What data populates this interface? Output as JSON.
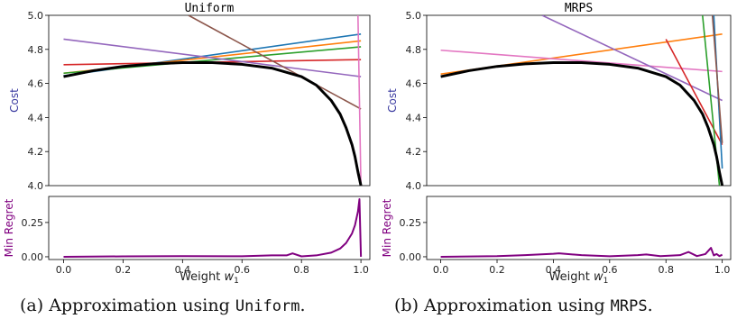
{
  "colors": {
    "frontier": "#000000",
    "regret": "#800080",
    "axis_label": "#3a3aa0",
    "regret_label": "#800080"
  },
  "captions": [
    {
      "prefix": "(a) Approximation using ",
      "code": "Uniform",
      "suffix": "."
    },
    {
      "prefix": "(b) Approximation using ",
      "code": "MRPS",
      "suffix": "."
    }
  ],
  "chart_data": [
    {
      "type": "line",
      "title": "Uniform",
      "xlabel": "Weight w1",
      "ylabel": "Cost",
      "regret_ylabel": "Min Regret",
      "xlim": [
        -0.05,
        1.03
      ],
      "ylim": [
        4.0,
        5.0
      ],
      "regret_ylim": [
        -0.02,
        0.44
      ],
      "xticks": [
        "0.0",
        "0.2",
        "0.4",
        "0.6",
        "0.8",
        "1.0"
      ],
      "yticks": [
        "4.0",
        "4.2",
        "4.4",
        "4.6",
        "4.8",
        "5.0"
      ],
      "regret_yticks": [
        "0.00",
        "0.25"
      ],
      "grid": false,
      "frontier": {
        "color": "#000000",
        "x": [
          0.0,
          0.1,
          0.2,
          0.3,
          0.4,
          0.5,
          0.6,
          0.7,
          0.8,
          0.85,
          0.9,
          0.93,
          0.95,
          0.97,
          0.98,
          0.99,
          1.0
        ],
        "y": [
          4.64,
          4.675,
          4.7,
          4.715,
          4.722,
          4.722,
          4.712,
          4.69,
          4.64,
          4.59,
          4.5,
          4.42,
          4.34,
          4.24,
          4.17,
          4.08,
          4.0
        ]
      },
      "lines": [
        {
          "color": "#1f77b4",
          "x": [
            0.0,
            1.0
          ],
          "y": [
            4.645,
            4.89
          ]
        },
        {
          "color": "#ff7f0e",
          "x": [
            0.0,
            1.0
          ],
          "y": [
            4.66,
            4.85
          ]
        },
        {
          "color": "#2ca02c",
          "x": [
            0.0,
            1.0
          ],
          "y": [
            4.66,
            4.815
          ]
        },
        {
          "color": "#d62728",
          "x": [
            0.0,
            1.0
          ],
          "y": [
            4.71,
            4.74
          ]
        },
        {
          "color": "#9467bd",
          "x": [
            0.0,
            1.0
          ],
          "y": [
            4.86,
            4.64
          ]
        },
        {
          "color": "#8c564b",
          "x": [
            0.42,
            1.0
          ],
          "y": [
            5.0,
            4.45
          ]
        },
        {
          "color": "#e377c2",
          "x": [
            0.99,
            1.0
          ],
          "y": [
            5.0,
            4.0
          ]
        }
      ],
      "regret": {
        "color": "#800080",
        "x": [
          0.0,
          0.2,
          0.4,
          0.6,
          0.7,
          0.75,
          0.77,
          0.8,
          0.85,
          0.9,
          0.93,
          0.95,
          0.97,
          0.98,
          0.99,
          0.995,
          1.0
        ],
        "y": [
          0.0,
          0.003,
          0.005,
          0.004,
          0.01,
          0.01,
          0.025,
          0.003,
          0.01,
          0.03,
          0.06,
          0.1,
          0.17,
          0.23,
          0.33,
          0.42,
          0.0
        ]
      }
    },
    {
      "type": "line",
      "title": "MRPS",
      "xlabel": "Weight w1",
      "ylabel": "Cost",
      "regret_ylabel": "Min Regret",
      "xlim": [
        -0.05,
        1.03
      ],
      "ylim": [
        4.0,
        5.0
      ],
      "regret_ylim": [
        -0.02,
        0.44
      ],
      "xticks": [
        "0.0",
        "0.2",
        "0.4",
        "0.6",
        "0.8",
        "1.0"
      ],
      "yticks": [
        "4.0",
        "4.2",
        "4.4",
        "4.6",
        "4.8",
        "5.0"
      ],
      "regret_yticks": [
        "0.00",
        "0.25"
      ],
      "grid": false,
      "frontier": {
        "color": "#000000",
        "x": [
          0.0,
          0.1,
          0.2,
          0.3,
          0.4,
          0.5,
          0.6,
          0.7,
          0.8,
          0.85,
          0.9,
          0.93,
          0.95,
          0.97,
          0.98,
          0.99,
          1.0
        ],
        "y": [
          4.64,
          4.675,
          4.7,
          4.715,
          4.722,
          4.722,
          4.712,
          4.69,
          4.64,
          4.59,
          4.5,
          4.42,
          4.34,
          4.24,
          4.17,
          4.08,
          4.0
        ]
      },
      "lines": [
        {
          "color": "#ff7f0e",
          "x": [
            0.0,
            1.0
          ],
          "y": [
            4.655,
            4.89
          ]
        },
        {
          "color": "#e377c2",
          "x": [
            0.0,
            1.0
          ],
          "y": [
            4.795,
            4.67
          ]
        },
        {
          "color": "#9467bd",
          "x": [
            0.36,
            1.0
          ],
          "y": [
            5.0,
            4.5
          ]
        },
        {
          "color": "#d62728",
          "x": [
            0.8,
            1.0
          ],
          "y": [
            4.86,
            4.24
          ]
        },
        {
          "color": "#2ca02c",
          "x": [
            0.93,
            0.99
          ],
          "y": [
            5.0,
            4.0
          ]
        },
        {
          "color": "#1f77b4",
          "x": [
            0.97,
            1.0
          ],
          "y": [
            5.0,
            4.1
          ]
        },
        {
          "color": "#8c564b",
          "x": [
            0.965,
            1.0
          ],
          "y": [
            5.0,
            4.25
          ]
        }
      ],
      "regret": {
        "color": "#800080",
        "x": [
          0.0,
          0.2,
          0.3,
          0.4,
          0.42,
          0.5,
          0.6,
          0.7,
          0.73,
          0.78,
          0.85,
          0.88,
          0.91,
          0.94,
          0.96,
          0.97,
          0.98,
          0.99,
          1.0
        ],
        "y": [
          0.0,
          0.005,
          0.012,
          0.022,
          0.025,
          0.012,
          0.004,
          0.012,
          0.017,
          0.005,
          0.012,
          0.035,
          0.005,
          0.02,
          0.065,
          0.01,
          0.02,
          0.005,
          0.015
        ]
      }
    }
  ]
}
